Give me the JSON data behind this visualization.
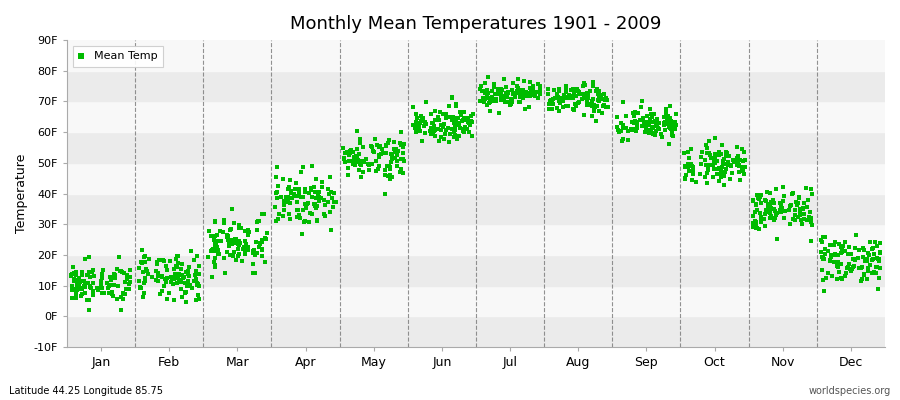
{
  "title": "Monthly Mean Temperatures 1901 - 2009",
  "ylabel": "Temperature",
  "xlabel_labels": [
    "Jan",
    "Feb",
    "Mar",
    "Apr",
    "May",
    "Jun",
    "Jul",
    "Aug",
    "Sep",
    "Oct",
    "Nov",
    "Dec"
  ],
  "ylim": [
    -10,
    90
  ],
  "yticks": [
    -10,
    0,
    10,
    20,
    30,
    40,
    50,
    60,
    70,
    80,
    90
  ],
  "ytick_labels": [
    "-10F",
    "0F",
    "10F",
    "20F",
    "30F",
    "40F",
    "50F",
    "60F",
    "70F",
    "80F",
    "90F"
  ],
  "dot_color": "#00BB00",
  "background_color": "#ffffff",
  "band_color_light": "#ebebeb",
  "band_color_dark": "#f8f8f8",
  "footer_left": "Latitude 44.25 Longitude 85.75",
  "footer_right": "worldspecies.org",
  "legend_label": "Mean Temp",
  "monthly_means": [
    10.5,
    12.5,
    24.0,
    38.0,
    52.0,
    63.0,
    72.5,
    70.5,
    62.5,
    50.0,
    34.5,
    18.5
  ],
  "monthly_stds": [
    3.2,
    3.8,
    4.5,
    4.2,
    3.5,
    2.8,
    2.2,
    2.5,
    2.8,
    3.0,
    3.5,
    4.0
  ],
  "days_in_month": [
    31,
    28,
    31,
    30,
    31,
    30,
    31,
    31,
    30,
    31,
    30,
    31
  ],
  "n_years": 109,
  "seed": 42
}
